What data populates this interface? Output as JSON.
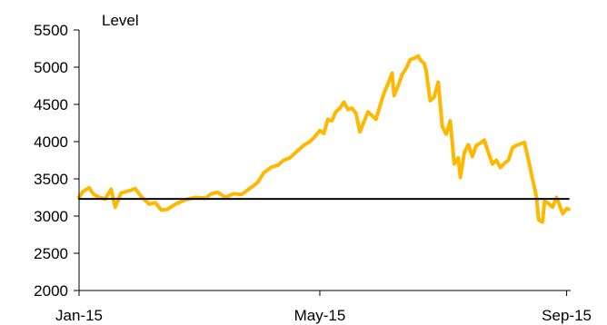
{
  "chart_data": {
    "type": "line",
    "title": "",
    "xlabel": "",
    "ylabel": "Level",
    "ylim": [
      2000,
      5500
    ],
    "yticks": [
      2000,
      2500,
      3000,
      3500,
      4000,
      4500,
      5000,
      5500
    ],
    "xticks": [
      {
        "label": "Jan-15",
        "date": "2015-01-01"
      },
      {
        "label": "May-15",
        "date": "2015-05-01"
      },
      {
        "label": "Sep-15",
        "date": "2015-09-01"
      }
    ],
    "xlim": [
      "2015-01-01",
      "2015-09-03"
    ],
    "grid": false,
    "series": [
      {
        "color": "#FFB800",
        "points": [
          [
            "2015-01-01",
            3250
          ],
          [
            "2015-01-03",
            3330
          ],
          [
            "2015-01-06",
            3380
          ],
          [
            "2015-01-08",
            3300
          ],
          [
            "2015-01-11",
            3250
          ],
          [
            "2015-01-14",
            3230
          ],
          [
            "2015-01-17",
            3360
          ],
          [
            "2015-01-19",
            3120
          ],
          [
            "2015-01-22",
            3310
          ],
          [
            "2015-01-26",
            3340
          ],
          [
            "2015-01-29",
            3370
          ],
          [
            "2015-02-01",
            3260
          ],
          [
            "2015-02-05",
            3160
          ],
          [
            "2015-02-08",
            3180
          ],
          [
            "2015-02-11",
            3080
          ],
          [
            "2015-02-14",
            3090
          ],
          [
            "2015-02-18",
            3160
          ],
          [
            "2015-02-23",
            3220
          ],
          [
            "2015-02-28",
            3250
          ],
          [
            "2015-03-05",
            3240
          ],
          [
            "2015-03-08",
            3300
          ],
          [
            "2015-03-11",
            3320
          ],
          [
            "2015-03-15",
            3250
          ],
          [
            "2015-03-19",
            3300
          ],
          [
            "2015-03-23",
            3290
          ],
          [
            "2015-03-26",
            3350
          ],
          [
            "2015-03-31",
            3450
          ],
          [
            "2015-04-03",
            3580
          ],
          [
            "2015-04-07",
            3660
          ],
          [
            "2015-04-10",
            3680
          ],
          [
            "2015-04-13",
            3750
          ],
          [
            "2015-04-16",
            3780
          ],
          [
            "2015-04-20",
            3880
          ],
          [
            "2015-04-23",
            3950
          ],
          [
            "2015-04-26",
            4000
          ],
          [
            "2015-04-28",
            4050
          ],
          [
            "2015-05-01",
            4150
          ],
          [
            "2015-05-03",
            4110
          ],
          [
            "2015-05-05",
            4300
          ],
          [
            "2015-05-07",
            4280
          ],
          [
            "2015-05-09",
            4400
          ],
          [
            "2015-05-11",
            4450
          ],
          [
            "2015-05-13",
            4530
          ],
          [
            "2015-05-15",
            4430
          ],
          [
            "2015-05-17",
            4450
          ],
          [
            "2015-05-19",
            4380
          ],
          [
            "2015-05-21",
            4130
          ],
          [
            "2015-05-23",
            4270
          ],
          [
            "2015-05-25",
            4400
          ],
          [
            "2015-05-27",
            4350
          ],
          [
            "2015-05-29",
            4300
          ],
          [
            "2015-05-31",
            4480
          ],
          [
            "2015-06-02",
            4650
          ],
          [
            "2015-06-04",
            4780
          ],
          [
            "2015-06-06",
            4920
          ],
          [
            "2015-06-07",
            4620
          ],
          [
            "2015-06-09",
            4750
          ],
          [
            "2015-06-11",
            4900
          ],
          [
            "2015-06-13",
            4980
          ],
          [
            "2015-06-15",
            5100
          ],
          [
            "2015-06-17",
            5120
          ],
          [
            "2015-06-19",
            5150
          ],
          [
            "2015-06-20",
            5100
          ],
          [
            "2015-06-22",
            5050
          ],
          [
            "2015-06-23",
            4950
          ],
          [
            "2015-06-25",
            4550
          ],
          [
            "2015-06-27",
            4600
          ],
          [
            "2015-06-29",
            4800
          ],
          [
            "2015-07-01",
            4200
          ],
          [
            "2015-07-03",
            4100
          ],
          [
            "2015-07-05",
            4280
          ],
          [
            "2015-07-07",
            3700
          ],
          [
            "2015-07-09",
            3780
          ],
          [
            "2015-07-10",
            3520
          ],
          [
            "2015-07-12",
            3850
          ],
          [
            "2015-07-14",
            3960
          ],
          [
            "2015-07-16",
            3800
          ],
          [
            "2015-07-18",
            3950
          ],
          [
            "2015-07-20",
            3980
          ],
          [
            "2015-07-22",
            4020
          ],
          [
            "2015-07-24",
            3850
          ],
          [
            "2015-07-26",
            3700
          ],
          [
            "2015-07-28",
            3750
          ],
          [
            "2015-07-30",
            3650
          ],
          [
            "2015-08-01",
            3710
          ],
          [
            "2015-08-03",
            3750
          ],
          [
            "2015-08-05",
            3920
          ],
          [
            "2015-08-07",
            3950
          ],
          [
            "2015-08-09",
            3970
          ],
          [
            "2015-08-11",
            3990
          ],
          [
            "2015-08-13",
            3750
          ],
          [
            "2015-08-15",
            3500
          ],
          [
            "2015-08-17",
            3250
          ],
          [
            "2015-08-18",
            2950
          ],
          [
            "2015-08-20",
            2920
          ],
          [
            "2015-08-21",
            3200
          ],
          [
            "2015-08-23",
            3170
          ],
          [
            "2015-08-25",
            3120
          ],
          [
            "2015-08-27",
            3250
          ],
          [
            "2015-08-28",
            3180
          ],
          [
            "2015-08-30",
            3030
          ],
          [
            "2015-09-01",
            3100
          ],
          [
            "2015-09-02",
            3090
          ]
        ]
      },
      {
        "color": "#000000",
        "points": [
          [
            "2015-01-01",
            3230
          ],
          [
            "2015-09-02",
            3230
          ]
        ]
      }
    ]
  }
}
